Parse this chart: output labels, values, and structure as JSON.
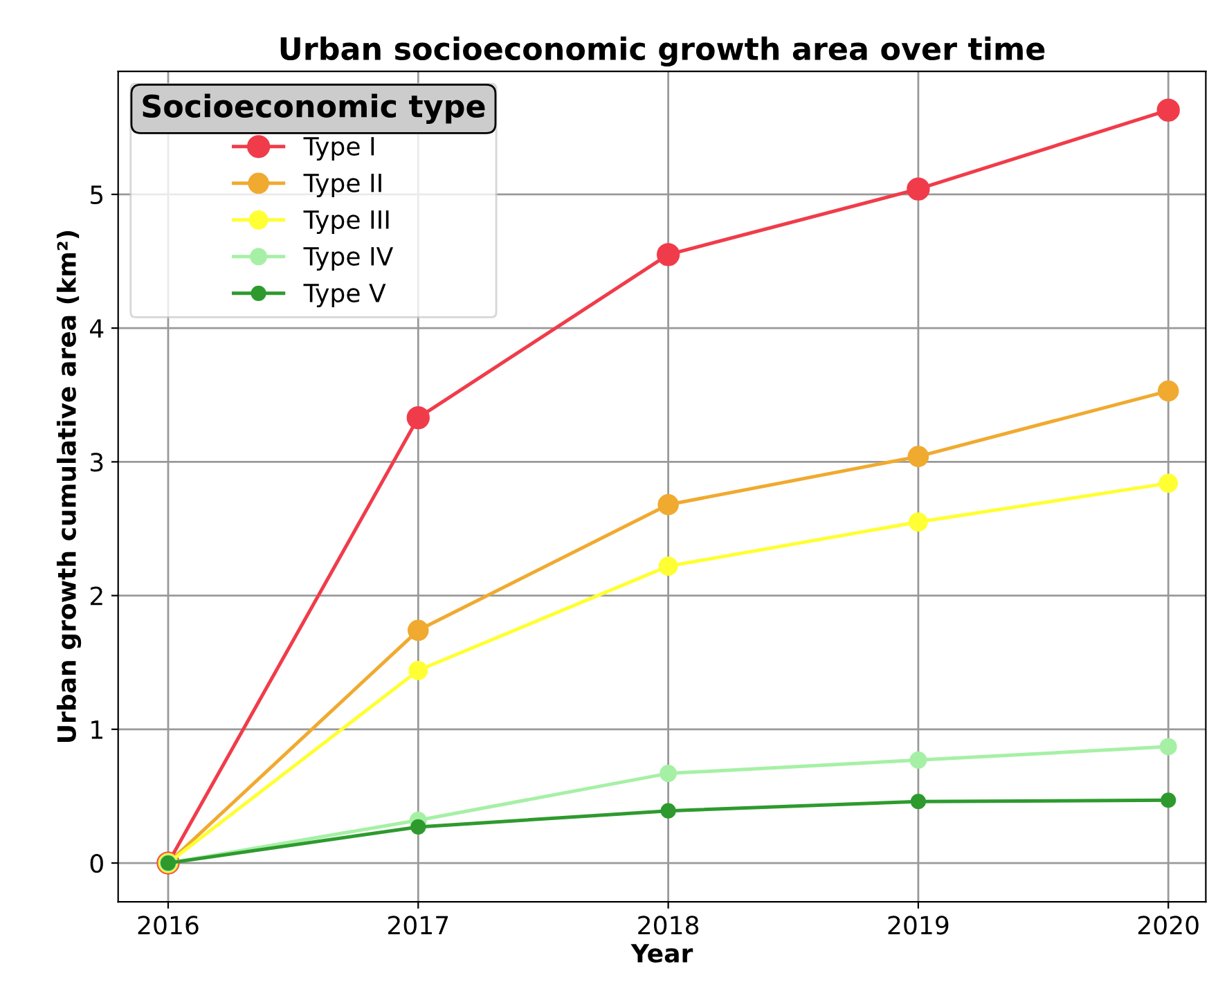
{
  "chart_data": {
    "type": "line",
    "title": "Urban socioeconomic growth area over time",
    "xlabel": "Year",
    "ylabel": "Urban growth cumulative area (km²)",
    "legend_title": "Socioeconomic type",
    "x": [
      2016,
      2017,
      2018,
      2019,
      2020
    ],
    "series": [
      {
        "name": "Type I",
        "color": "#f03c4a",
        "values": [
          0,
          3.33,
          4.55,
          5.04,
          5.63
        ]
      },
      {
        "name": "Type II",
        "color": "#f0aa30",
        "values": [
          0,
          1.74,
          2.68,
          3.04,
          3.53
        ]
      },
      {
        "name": "Type III",
        "color": "#ffff33",
        "values": [
          0,
          1.44,
          2.22,
          2.55,
          2.84
        ]
      },
      {
        "name": "Type IV",
        "color": "#a6f0a6",
        "values": [
          0,
          0.32,
          0.67,
          0.77,
          0.87
        ]
      },
      {
        "name": "Type V",
        "color": "#2e9a2e",
        "values": [
          0,
          0.27,
          0.39,
          0.46,
          0.47
        ]
      }
    ],
    "xlim": [
      2015.8,
      2020.15
    ],
    "ylim": [
      -0.29,
      5.92
    ],
    "xticks": [
      2016,
      2017,
      2018,
      2019,
      2020
    ],
    "yticks": [
      0,
      1,
      2,
      3,
      4,
      5
    ],
    "grid": true,
    "legend": "top left",
    "marker": "circle",
    "line_style": "solid"
  }
}
